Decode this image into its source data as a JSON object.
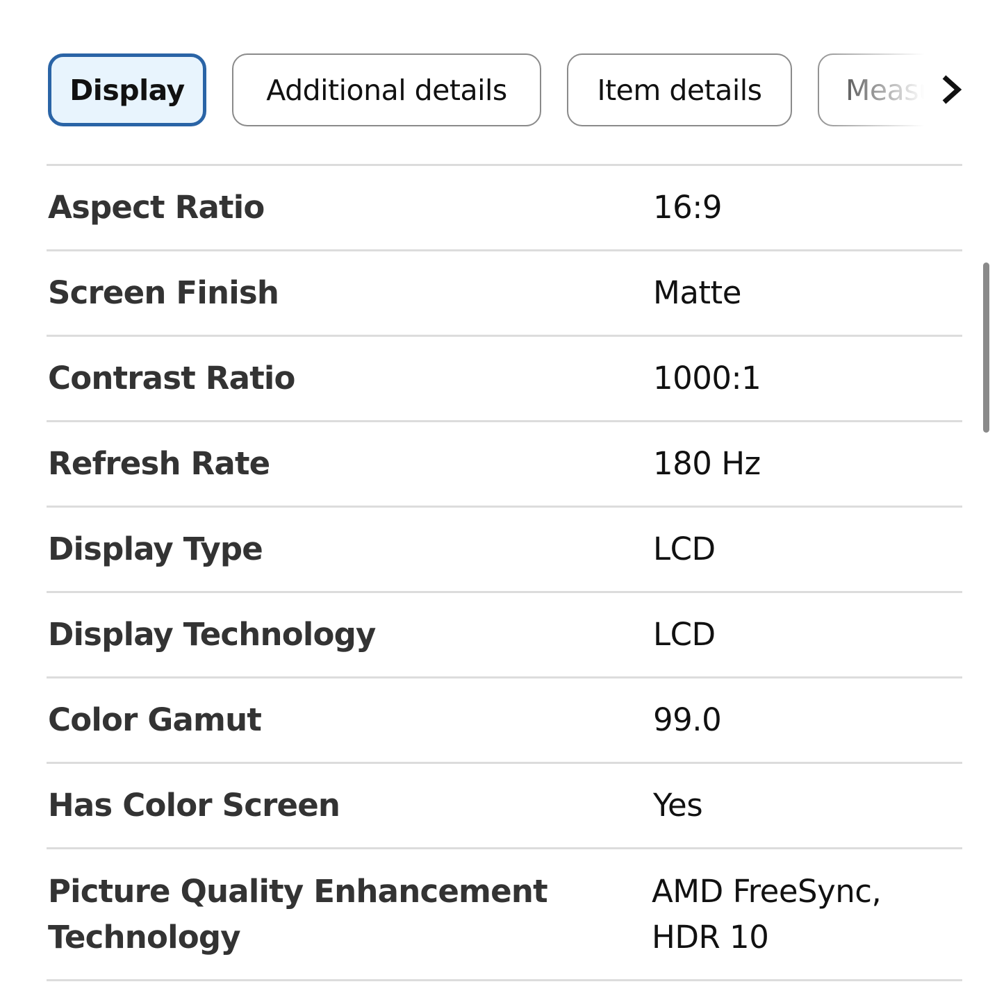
{
  "tabs": [
    {
      "label": "Display",
      "active": true
    },
    {
      "label": "Additional details",
      "active": false
    },
    {
      "label": "Item details",
      "active": false
    },
    {
      "label": "Measurements",
      "active": false
    }
  ],
  "next_icon": "chevron-right-icon",
  "accent_color": "#2a64a6",
  "specs": [
    {
      "label": "Aspect Ratio",
      "value": "16:9"
    },
    {
      "label": "Screen Finish",
      "value": "Matte"
    },
    {
      "label": "Contrast Ratio",
      "value": "1000:1"
    },
    {
      "label": "Refresh Rate",
      "value": "180 Hz"
    },
    {
      "label": "Display Type",
      "value": "LCD"
    },
    {
      "label": "Display Technology",
      "value": "LCD"
    },
    {
      "label": "Color Gamut",
      "value": "99.0"
    },
    {
      "label": "Has Color Screen",
      "value": "Yes"
    },
    {
      "label": "Picture Quality Enhancement Technology",
      "value": "AMD FreeSync, HDR 10"
    }
  ]
}
